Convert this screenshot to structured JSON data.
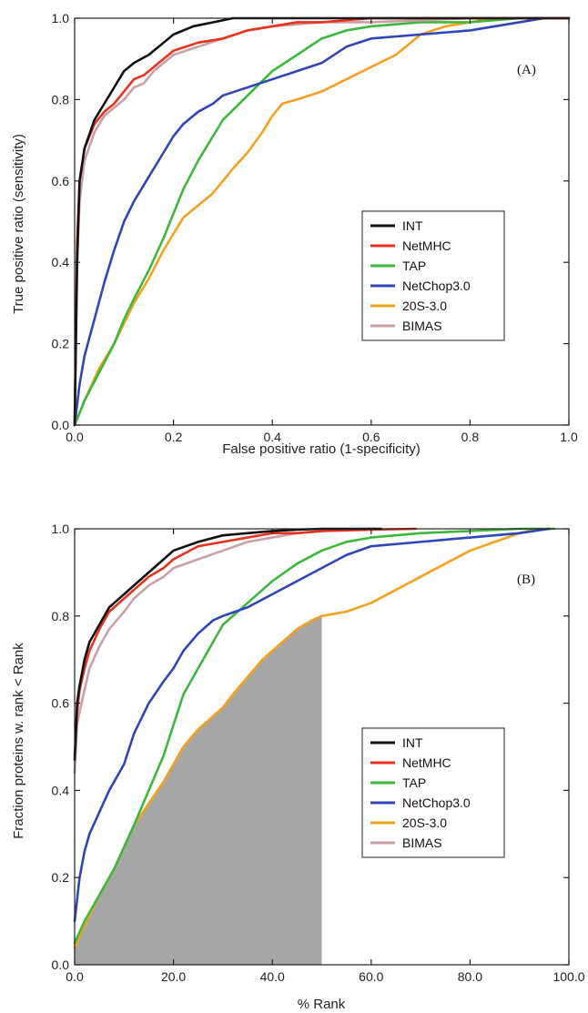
{
  "chart_data": [
    {
      "type": "line",
      "panel_label": "(A)",
      "xlabel": "False positive ratio (1-specificity)",
      "ylabel": "True positive ratio (sensitivity)",
      "xlim": [
        0,
        1
      ],
      "ylim": [
        0,
        1
      ],
      "x_ticks": [
        "0.0",
        "0.2",
        "0.4",
        "0.6",
        "0.8",
        "1.0"
      ],
      "y_ticks": [
        "0.0",
        "0.2",
        "0.4",
        "0.6",
        "0.8",
        "1.0"
      ],
      "grid": false,
      "legend_position": "center-right",
      "series": [
        {
          "name": "INT",
          "color": "#111111",
          "x": [
            0,
            0.005,
            0.01,
            0.02,
            0.04,
            0.06,
            0.08,
            0.1,
            0.12,
            0.15,
            0.18,
            0.2,
            0.24,
            0.28,
            0.32,
            0.36,
            0.4,
            0.5,
            0.6,
            0.8,
            1.0
          ],
          "y": [
            0,
            0.4,
            0.6,
            0.68,
            0.75,
            0.79,
            0.83,
            0.87,
            0.89,
            0.91,
            0.94,
            0.96,
            0.98,
            0.99,
            1.0,
            1.0,
            1.0,
            1.0,
            1.0,
            1.0,
            1.0
          ]
        },
        {
          "name": "NetMHC",
          "color": "#e8321e",
          "x": [
            0,
            0.005,
            0.01,
            0.02,
            0.04,
            0.06,
            0.08,
            0.1,
            0.12,
            0.14,
            0.16,
            0.2,
            0.25,
            0.3,
            0.35,
            0.4,
            0.45,
            0.5,
            0.6,
            0.8,
            1.0
          ],
          "y": [
            0,
            0.45,
            0.6,
            0.68,
            0.74,
            0.77,
            0.79,
            0.82,
            0.85,
            0.86,
            0.88,
            0.92,
            0.94,
            0.95,
            0.97,
            0.98,
            0.99,
            0.99,
            1.0,
            1.0,
            1.0
          ]
        },
        {
          "name": "TAP",
          "color": "#3db83d",
          "x": [
            0,
            0.02,
            0.05,
            0.08,
            0.1,
            0.12,
            0.15,
            0.18,
            0.2,
            0.22,
            0.25,
            0.28,
            0.3,
            0.35,
            0.4,
            0.45,
            0.5,
            0.55,
            0.6,
            0.7,
            0.8,
            0.9,
            0.95
          ],
          "y": [
            0,
            0.06,
            0.13,
            0.2,
            0.26,
            0.31,
            0.38,
            0.46,
            0.52,
            0.58,
            0.65,
            0.71,
            0.75,
            0.81,
            0.87,
            0.91,
            0.95,
            0.97,
            0.98,
            0.99,
            0.99,
            1.0,
            1.0
          ]
        },
        {
          "name": "NetChop3.0",
          "color": "#2f46b8",
          "x": [
            0,
            0.01,
            0.02,
            0.04,
            0.06,
            0.08,
            0.1,
            0.12,
            0.15,
            0.18,
            0.2,
            0.22,
            0.25,
            0.28,
            0.3,
            0.35,
            0.4,
            0.45,
            0.5,
            0.55,
            0.6,
            0.7,
            0.8,
            0.85,
            0.9,
            0.95
          ],
          "y": [
            0,
            0.1,
            0.17,
            0.26,
            0.35,
            0.43,
            0.5,
            0.55,
            0.61,
            0.67,
            0.71,
            0.74,
            0.77,
            0.79,
            0.81,
            0.83,
            0.85,
            0.87,
            0.89,
            0.93,
            0.95,
            0.96,
            0.97,
            0.98,
            0.99,
            1.0
          ]
        },
        {
          "name": "20S-3.0",
          "color": "#f5a020",
          "x": [
            0,
            0.02,
            0.05,
            0.08,
            0.1,
            0.12,
            0.15,
            0.18,
            0.2,
            0.22,
            0.25,
            0.28,
            0.3,
            0.32,
            0.35,
            0.38,
            0.4,
            0.42,
            0.45,
            0.5,
            0.55,
            0.6,
            0.65,
            0.7,
            0.75,
            0.8,
            0.85,
            0.9,
            1.0
          ],
          "y": [
            0,
            0.06,
            0.14,
            0.2,
            0.25,
            0.3,
            0.36,
            0.43,
            0.47,
            0.51,
            0.54,
            0.57,
            0.6,
            0.63,
            0.67,
            0.72,
            0.76,
            0.79,
            0.8,
            0.82,
            0.85,
            0.88,
            0.91,
            0.96,
            0.98,
            0.99,
            1.0,
            1.0,
            1.0
          ]
        },
        {
          "name": "BIMAS",
          "color": "#c9a0a6",
          "x": [
            0,
            0.005,
            0.01,
            0.02,
            0.04,
            0.06,
            0.08,
            0.1,
            0.12,
            0.14,
            0.16,
            0.2,
            0.25,
            0.3,
            0.35,
            0.4,
            0.5,
            0.6,
            0.8,
            1.0
          ],
          "y": [
            0,
            0.4,
            0.55,
            0.65,
            0.72,
            0.76,
            0.78,
            0.8,
            0.83,
            0.84,
            0.87,
            0.91,
            0.93,
            0.95,
            0.97,
            0.98,
            0.99,
            0.99,
            1.0,
            1.0
          ]
        }
      ]
    },
    {
      "type": "line",
      "panel_label": "(B)",
      "xlabel": "% Rank",
      "ylabel": "Fraction proteins w. rank < Rank",
      "xlim": [
        0,
        100
      ],
      "ylim": [
        0,
        1
      ],
      "x_ticks": [
        "0.0",
        "20.0",
        "40.0",
        "60.0",
        "80.0",
        "100.0"
      ],
      "y_ticks": [
        "0.0",
        "0.2",
        "0.4",
        "0.6",
        "0.8",
        "1.0"
      ],
      "grid": false,
      "legend_position": "center-right",
      "shaded_region": {
        "color": "#a6a6a6",
        "x_max": 50,
        "follows_series": "20S-3.0"
      },
      "series": [
        {
          "name": "INT",
          "color": "#111111",
          "x": [
            0,
            0.5,
            1,
            2,
            3,
            5,
            7,
            10,
            12,
            15,
            18,
            20,
            25,
            30,
            35,
            40,
            45,
            50,
            55,
            62
          ],
          "y": [
            0.47,
            0.6,
            0.64,
            0.7,
            0.74,
            0.78,
            0.82,
            0.85,
            0.87,
            0.9,
            0.93,
            0.95,
            0.97,
            0.985,
            0.99,
            0.995,
            0.998,
            1.0,
            1.0,
            1.0
          ]
        },
        {
          "name": "NetMHC",
          "color": "#e8321e",
          "x": [
            0,
            0.5,
            1,
            2,
            3,
            5,
            7,
            10,
            12,
            15,
            18,
            20,
            25,
            30,
            35,
            40,
            45,
            50,
            60,
            69
          ],
          "y": [
            0.48,
            0.58,
            0.63,
            0.68,
            0.72,
            0.77,
            0.81,
            0.84,
            0.86,
            0.89,
            0.91,
            0.93,
            0.96,
            0.97,
            0.98,
            0.99,
            0.99,
            0.995,
            0.998,
            1.0
          ]
        },
        {
          "name": "TAP",
          "color": "#3db83d",
          "x": [
            0,
            2,
            5,
            8,
            10,
            12,
            15,
            18,
            20,
            22,
            25,
            28,
            30,
            35,
            40,
            45,
            50,
            55,
            60,
            70,
            80,
            90,
            97
          ],
          "y": [
            0.05,
            0.1,
            0.16,
            0.22,
            0.27,
            0.32,
            0.4,
            0.48,
            0.55,
            0.62,
            0.68,
            0.74,
            0.78,
            0.83,
            0.88,
            0.92,
            0.95,
            0.97,
            0.98,
            0.99,
            0.995,
            1.0,
            1.0
          ]
        },
        {
          "name": "NetChop3.0",
          "color": "#2f46b8",
          "x": [
            0,
            1,
            2,
            3,
            5,
            7,
            10,
            12,
            15,
            18,
            20,
            22,
            25,
            28,
            30,
            35,
            40,
            45,
            50,
            55,
            60,
            70,
            80,
            90,
            96
          ],
          "y": [
            0.1,
            0.2,
            0.26,
            0.3,
            0.35,
            0.4,
            0.46,
            0.53,
            0.6,
            0.65,
            0.68,
            0.72,
            0.76,
            0.79,
            0.8,
            0.82,
            0.85,
            0.88,
            0.91,
            0.94,
            0.96,
            0.97,
            0.98,
            0.99,
            1.0
          ]
        },
        {
          "name": "20S-3.0",
          "color": "#f5a020",
          "x": [
            0,
            2,
            5,
            8,
            10,
            12,
            15,
            18,
            20,
            22,
            25,
            28,
            30,
            32,
            35,
            38,
            40,
            42,
            45,
            48,
            50,
            55,
            60,
            65,
            70,
            75,
            80,
            85,
            90,
            94
          ],
          "y": [
            0.04,
            0.09,
            0.16,
            0.22,
            0.27,
            0.32,
            0.37,
            0.42,
            0.46,
            0.5,
            0.54,
            0.57,
            0.59,
            0.62,
            0.66,
            0.7,
            0.72,
            0.74,
            0.77,
            0.79,
            0.8,
            0.81,
            0.83,
            0.86,
            0.89,
            0.92,
            0.95,
            0.97,
            0.99,
            1.0
          ]
        },
        {
          "name": "BIMAS",
          "color": "#c9a0a6",
          "x": [
            0,
            0.5,
            1,
            2,
            3,
            5,
            7,
            10,
            12,
            15,
            18,
            20,
            25,
            30,
            35,
            40,
            45,
            50,
            60
          ],
          "y": [
            0.44,
            0.55,
            0.58,
            0.63,
            0.68,
            0.73,
            0.77,
            0.81,
            0.84,
            0.87,
            0.89,
            0.91,
            0.93,
            0.95,
            0.97,
            0.98,
            0.99,
            0.995,
            1.0
          ]
        }
      ]
    }
  ]
}
